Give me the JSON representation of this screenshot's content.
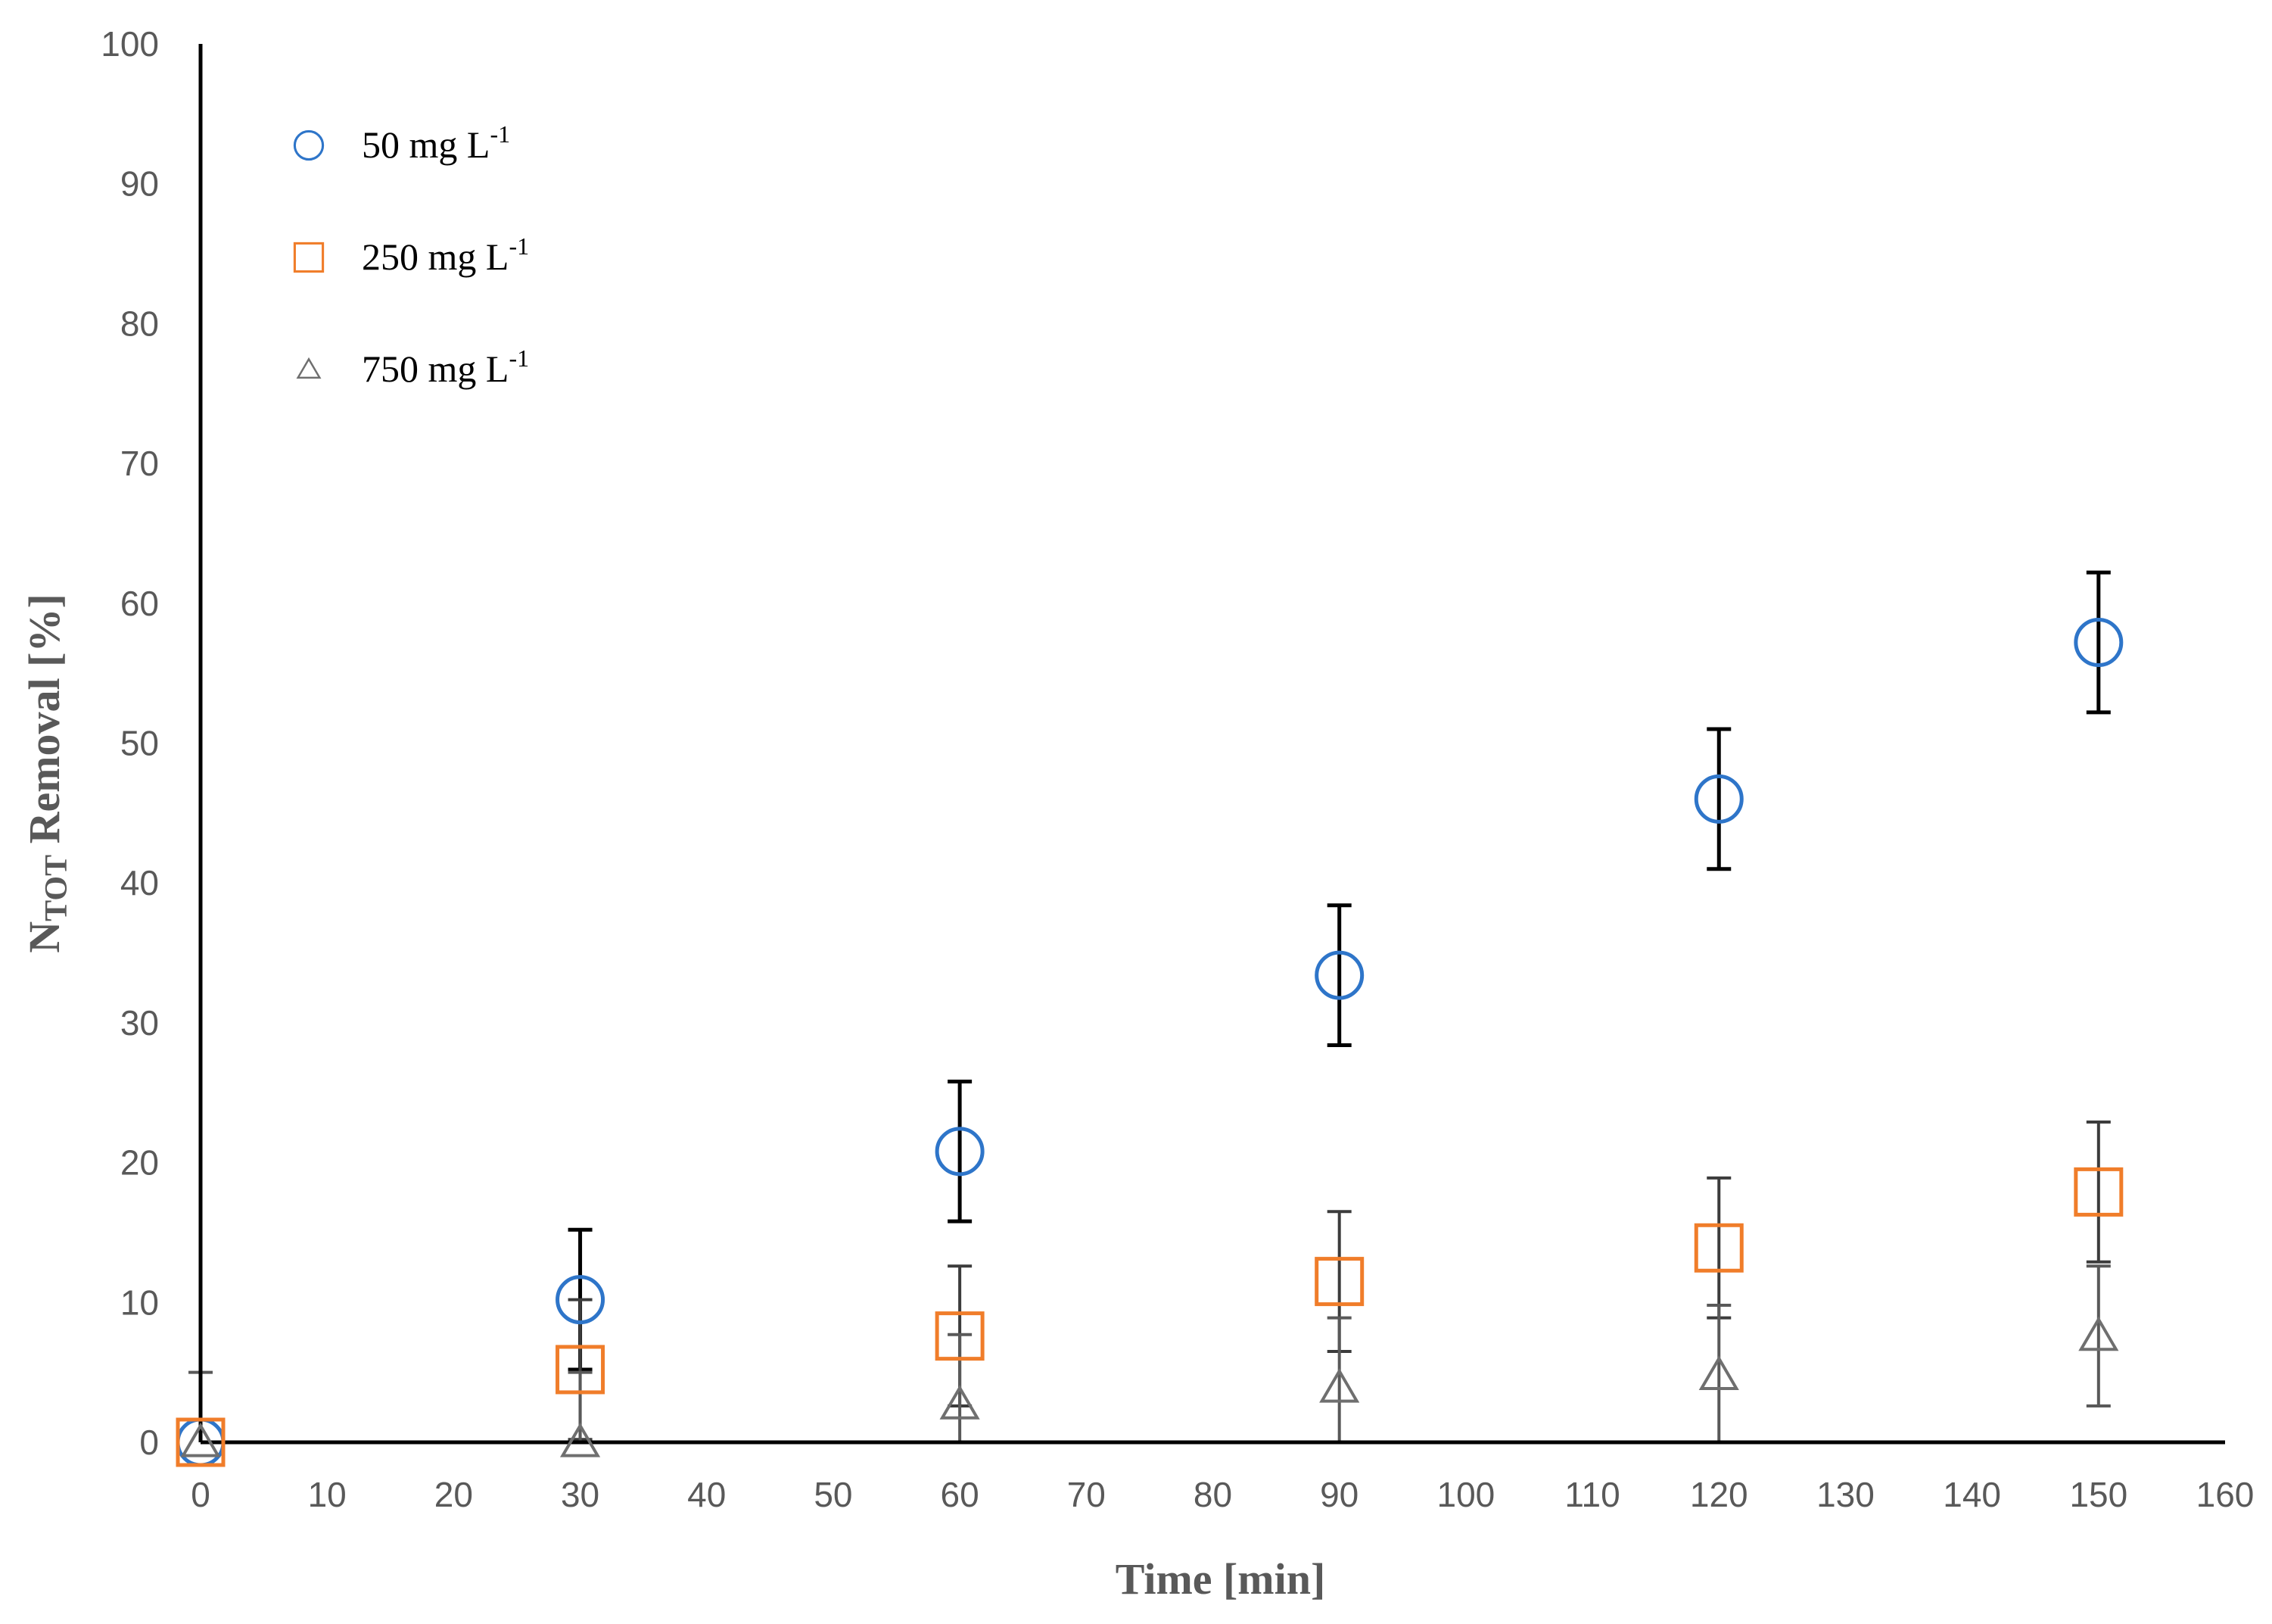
{
  "chart_data": {
    "type": "scatter",
    "title": "",
    "xlabel": "Time [min]",
    "ylabel_main": "N",
    "ylabel_sub": "TOT",
    "ylabel_rest": " Removal [%]",
    "xlim": [
      0,
      160
    ],
    "ylim": [
      0,
      100
    ],
    "xticks": [
      0,
      10,
      20,
      30,
      40,
      50,
      60,
      70,
      80,
      90,
      100,
      110,
      120,
      130,
      140,
      150,
      160
    ],
    "yticks": [
      0,
      10,
      20,
      30,
      40,
      50,
      60,
      70,
      80,
      90,
      100
    ],
    "grid": false,
    "legend_position": "top-left",
    "series": [
      {
        "name": "50 mg L-1",
        "label_main": "50 mg L",
        "label_sup": "-1",
        "marker": "circle",
        "color": "#2E75C9",
        "error_color": "#000000",
        "x": [
          0,
          30,
          60,
          90,
          120,
          150
        ],
        "y": [
          0,
          10.2,
          20.8,
          33.4,
          46.0,
          57.2
        ],
        "err": [
          0,
          5.0,
          5.0,
          5.0,
          5.0,
          5.0
        ]
      },
      {
        "name": "250 mg L-1",
        "label_main": "250 mg L",
        "label_sup": "-1",
        "marker": "square",
        "color": "#F07D2A",
        "error_color": "#3C3C3C",
        "x": [
          0,
          30,
          60,
          90,
          120,
          150
        ],
        "y": [
          0,
          5.2,
          7.6,
          11.5,
          13.9,
          17.9
        ],
        "err": [
          0,
          5.0,
          5.0,
          5.0,
          5.0,
          5.0
        ]
      },
      {
        "name": "750 mg L-1",
        "label_main": "750 mg L",
        "label_sup": "-1",
        "marker": "triangle",
        "color": "#6F6F6F",
        "error_color": "#595959",
        "x": [
          0,
          30,
          60,
          90,
          120,
          150
        ],
        "y": [
          0,
          0,
          2.7,
          3.9,
          4.8,
          7.6
        ],
        "err": [
          5.0,
          5.0,
          5.0,
          5.0,
          5.0,
          5.0
        ]
      }
    ]
  }
}
